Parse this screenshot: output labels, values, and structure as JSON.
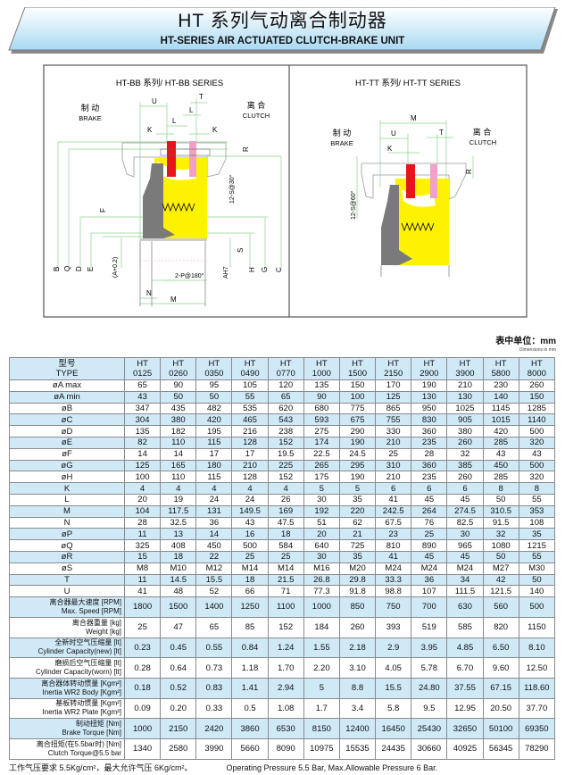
{
  "header": {
    "title_cn": "HT 系列气动离合制动器",
    "title_en": "HT-SERIES AIR ACTUATED CLUTCH-BRAKE UNIT",
    "gradient_colors": [
      "#ffffff",
      "#a9d9f2"
    ]
  },
  "diagram_bb": {
    "title": "HT-BB 系列/ HT-BB SERIES",
    "brake_cn": "制 动",
    "brake_en": "BRAKE",
    "clutch_cn": "离 合",
    "clutch_en": "CLUTCH",
    "dims": {
      "U": "U",
      "T": "T",
      "L1": "L",
      "L2": "L",
      "K1": "K",
      "K2": "K",
      "R": "R",
      "S12": "12-S@30°",
      "F": "F",
      "B": "B",
      "Q": "Q",
      "D": "D",
      "E": "E",
      "A": "(A+0.2)",
      "AH7": "AH7",
      "S": "S",
      "H": "H",
      "G": "G",
      "C": "C",
      "P": "2-P@180°",
      "N": "N",
      "M": "M"
    }
  },
  "diagram_tt": {
    "title": "HT-TT 系列/ HT-TT SERIES",
    "brake_cn": "制 动",
    "brake_en": "BRAKE",
    "clutch_cn": "离 合",
    "clutch_en": "CLUTCH",
    "dims": {
      "M": "M",
      "U": "U",
      "T": "T",
      "K": "K",
      "R": "R",
      "S12": "12-S@60°"
    }
  },
  "colors": {
    "yellow": "#fff200",
    "gray": "#808080",
    "red": "#e8141b",
    "pink": "#f2a0c8",
    "dim_line": "#8fd08f",
    "row_blue": "#cfe9f7"
  },
  "units": {
    "cn": "表中单位：mm",
    "en": "Dimensions in mm"
  },
  "table": {
    "type_cn": "型号",
    "type_en": "TYPE",
    "models": [
      "0125",
      "0260",
      "0350",
      "0490",
      "0770",
      "1000",
      "1500",
      "2150",
      "2900",
      "3900",
      "5800",
      "8000"
    ],
    "model_prefix": "HT",
    "rows": [
      {
        "label": "øA max",
        "values": [
          "65",
          "90",
          "95",
          "105",
          "120",
          "135",
          "150",
          "170",
          "190",
          "210",
          "230",
          "260"
        ]
      },
      {
        "label": "øA min",
        "values": [
          "43",
          "50",
          "50",
          "55",
          "65",
          "90",
          "100",
          "125",
          "130",
          "130",
          "140",
          "150"
        ]
      },
      {
        "label": "øB",
        "values": [
          "347",
          "435",
          "482",
          "535",
          "620",
          "680",
          "775",
          "865",
          "950",
          "1025",
          "1145",
          "1285"
        ]
      },
      {
        "label": "øC",
        "values": [
          "304",
          "380",
          "420",
          "465",
          "543",
          "593",
          "675",
          "755",
          "830",
          "905",
          "1015",
          "1140"
        ]
      },
      {
        "label": "øD",
        "values": [
          "135",
          "182",
          "195",
          "216",
          "238",
          "275",
          "290",
          "330",
          "360",
          "380",
          "420",
          "500"
        ]
      },
      {
        "label": "øE",
        "values": [
          "82",
          "110",
          "115",
          "128",
          "152",
          "174",
          "190",
          "210",
          "235",
          "260",
          "285",
          "320"
        ]
      },
      {
        "label": "øF",
        "values": [
          "14",
          "14",
          "17",
          "17",
          "19.5",
          "22.5",
          "24.5",
          "25",
          "28",
          "32",
          "43",
          "43"
        ]
      },
      {
        "label": "øG",
        "values": [
          "125",
          "165",
          "180",
          "210",
          "225",
          "265",
          "295",
          "310",
          "360",
          "385",
          "450",
          "500"
        ]
      },
      {
        "label": "øH",
        "values": [
          "100",
          "110",
          "115",
          "128",
          "152",
          "175",
          "190",
          "210",
          "235",
          "260",
          "285",
          "320"
        ]
      },
      {
        "label": "K",
        "values": [
          "4",
          "4",
          "4",
          "4",
          "4",
          "5",
          "5",
          "6",
          "6",
          "6",
          "8",
          "8"
        ]
      },
      {
        "label": "L",
        "values": [
          "20",
          "19",
          "24",
          "24",
          "26",
          "30",
          "35",
          "41",
          "45",
          "45",
          "50",
          "55"
        ]
      },
      {
        "label": "M",
        "values": [
          "104",
          "117.5",
          "131",
          "149.5",
          "169",
          "192",
          "220",
          "242.5",
          "264",
          "274.5",
          "310.5",
          "353"
        ]
      },
      {
        "label": "N",
        "values": [
          "28",
          "32.5",
          "36",
          "43",
          "47.5",
          "51",
          "62",
          "67.5",
          "76",
          "82.5",
          "91.5",
          "108"
        ]
      },
      {
        "label": "øP",
        "values": [
          "11",
          "13",
          "14",
          "16",
          "18",
          "20",
          "21",
          "23",
          "25",
          "30",
          "32",
          "35"
        ]
      },
      {
        "label": "øQ",
        "values": [
          "325",
          "408",
          "450",
          "500",
          "584",
          "640",
          "725",
          "810",
          "890",
          "965",
          "1080",
          "1215"
        ]
      },
      {
        "label": "øR",
        "values": [
          "15",
          "18",
          "22",
          "25",
          "25",
          "30",
          "35",
          "41",
          "45",
          "45",
          "50",
          "55"
        ]
      },
      {
        "label": "øS",
        "values": [
          "M8",
          "M10",
          "M12",
          "M14",
          "M14",
          "M16",
          "M20",
          "M24",
          "M24",
          "M24",
          "M27",
          "M30"
        ]
      },
      {
        "label": "T",
        "values": [
          "11",
          "14.5",
          "15.5",
          "18",
          "21.5",
          "26.8",
          "29.8",
          "33.3",
          "36",
          "34",
          "42",
          "50"
        ]
      },
      {
        "label": "U",
        "values": [
          "41",
          "48",
          "52",
          "66",
          "71",
          "77.3",
          "91.8",
          "98.8",
          "107",
          "111.5",
          "121.5",
          "140"
        ]
      },
      {
        "label": "离合器最大速度 [RPM]",
        "label2": "Max. Speed [RPM]",
        "values": [
          "1800",
          "1500",
          "1400",
          "1250",
          "1100",
          "1000",
          "850",
          "750",
          "700",
          "630",
          "560",
          "500"
        ]
      },
      {
        "label": "离合器重量 [kg]",
        "label2": "Weight [kg]",
        "values": [
          "25",
          "47",
          "65",
          "85",
          "152",
          "184",
          "260",
          "393",
          "519",
          "585",
          "820",
          "1150"
        ]
      },
      {
        "label": "全新时空气压缩量 [lt]",
        "label2": "Cylinder Capacity(new) [lt]",
        "values": [
          "0.23",
          "0.45",
          "0.55",
          "0.84",
          "1.24",
          "1.55",
          "2.18",
          "2.9",
          "3.95",
          "4.85",
          "6.50",
          "8.10"
        ]
      },
      {
        "label": "磨损后空气压缩量 [lt]",
        "label2": "Cylinder Capacity(worn) [lt]",
        "values": [
          "0.28",
          "0.64",
          "0.73",
          "1.18",
          "1.70",
          "2.20",
          "3.10",
          "4.05",
          "5.78",
          "6.70",
          "9.60",
          "12.50"
        ]
      },
      {
        "label": "离合器体转动惯量 [Kgm²]",
        "label2": "Inertia WR2 Body [Kgm²]",
        "values": [
          "0.18",
          "0.52",
          "0.83",
          "1.41",
          "2.94",
          "5",
          "8.8",
          "15.5",
          "24.80",
          "37.55",
          "67.15",
          "118.60"
        ]
      },
      {
        "label": "基板转动惯量 [Kgm²]",
        "label2": "Inertia WR2 Plate [Kgm²]",
        "values": [
          "0.09",
          "0.20",
          "0.33",
          "0.5",
          "1.08",
          "1.7",
          "3.4",
          "5.8",
          "9.5",
          "12.95",
          "20.50",
          "37.70"
        ]
      },
      {
        "label": "制动扭矩 [Nm]",
        "label2": "Brake Torque [Nm]",
        "values": [
          "1000",
          "2150",
          "2420",
          "3860",
          "6530",
          "8150",
          "12400",
          "16450",
          "25430",
          "32650",
          "50100",
          "69350"
        ]
      },
      {
        "label": "离合扭矩(在5.5bar时) [Nm]",
        "label2": "Clutch Torque@5.5 bar",
        "values": [
          "1340",
          "2580",
          "3990",
          "5660",
          "8090",
          "10975",
          "15535",
          "24435",
          "30660",
          "40925",
          "56345",
          "78290"
        ]
      }
    ]
  },
  "footer": {
    "note_cn": "工作气压要求 5.5Kg/cm²，最大允许气压 6Kg/cm²。",
    "note_en": "Operating Pressure 5.5 Bar, Max.Allowable Pressure 6 Bar."
  }
}
